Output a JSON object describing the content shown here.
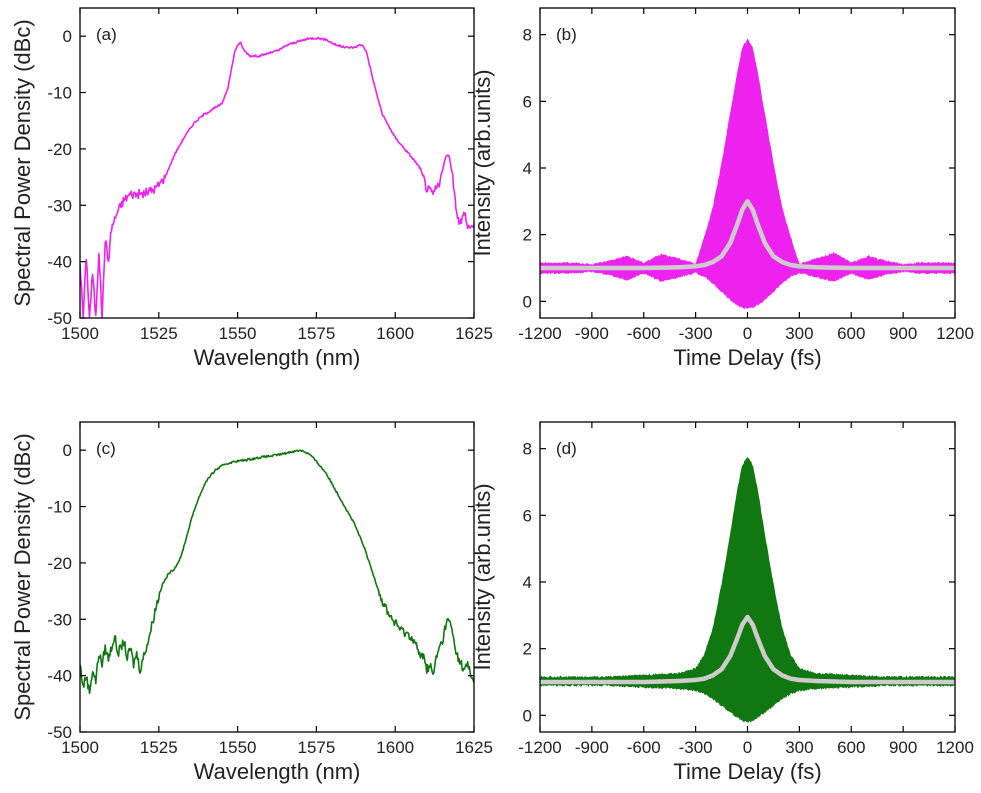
{
  "chart_data": [
    {
      "panel": "(a)",
      "type": "line",
      "xlabel": "Wavelength (nm)",
      "ylabel": "Spectral Power Density (dBc)",
      "xlim": [
        1500,
        1625
      ],
      "ylim": [
        -50,
        5
      ],
      "xticks": [
        1500,
        1525,
        1550,
        1575,
        1600,
        1625
      ],
      "yticks": [
        -50,
        -40,
        -30,
        -20,
        -10,
        0
      ],
      "grid": false,
      "color": "#ee22ee",
      "series": [
        {
          "x": [
            1500,
            1501,
            1502,
            1503,
            1504,
            1505,
            1506,
            1507,
            1508,
            1509,
            1510,
            1512,
            1514,
            1516,
            1520,
            1524,
            1527,
            1530,
            1533,
            1536,
            1539,
            1542,
            1545,
            1547,
            1548,
            1549,
            1550,
            1551,
            1552,
            1554,
            1557,
            1560,
            1563,
            1566,
            1569,
            1572,
            1575,
            1578,
            1581,
            1584,
            1587,
            1589,
            1590,
            1591,
            1592,
            1594,
            1596,
            1598,
            1600,
            1603,
            1606,
            1608,
            1610,
            1612,
            1614,
            1616,
            1617,
            1618,
            1619,
            1620,
            1621,
            1622,
            1623,
            1624,
            1625
          ],
          "y": [
            -40,
            -50,
            -39,
            -50,
            -42,
            -50,
            -38,
            -50,
            -36,
            -40,
            -34,
            -31,
            -29,
            -28,
            -28,
            -27,
            -25,
            -21,
            -18,
            -15.5,
            -14,
            -13,
            -12,
            -9,
            -6,
            -3,
            -1.5,
            -1.2,
            -2.5,
            -3.5,
            -3.5,
            -3,
            -2.5,
            -1.5,
            -1,
            -0.5,
            -0.3,
            -0.6,
            -1.5,
            -2,
            -2,
            -1.5,
            -1.8,
            -3,
            -5.5,
            -10,
            -14,
            -16,
            -18,
            -20,
            -22,
            -23.5,
            -27,
            -28,
            -26,
            -21.5,
            -21,
            -24,
            -29,
            -32.5,
            -33,
            -31,
            -34,
            -33.5,
            -34
          ]
        }
      ]
    },
    {
      "panel": "(b)",
      "type": "line",
      "xlabel": "Time Delay (fs)",
      "ylabel": "Intensity (arb.units)",
      "xlim": [
        -1200,
        1200
      ],
      "ylim": [
        -0.5,
        8.8
      ],
      "xticks": [
        -1200,
        -900,
        -600,
        -300,
        0,
        300,
        600,
        900,
        1200
      ],
      "yticks": [
        0,
        2,
        4,
        6,
        8
      ],
      "grid": false,
      "color": "#ee22ee",
      "envelope_color": "#ee22ee",
      "fit_color": "#cccccc",
      "series": [
        {
          "x": [
            -1200,
            -1000,
            -900,
            -800,
            -700,
            -600,
            -500,
            -420,
            -350,
            -300,
            -250,
            -200,
            -150,
            -100,
            -60,
            -30,
            0,
            30,
            60,
            100,
            150,
            200,
            250,
            300,
            350,
            420,
            500,
            600,
            700,
            800,
            900,
            1000,
            1200
          ],
          "upper": [
            1.15,
            1.15,
            1.1,
            1.2,
            1.35,
            1.15,
            1.4,
            1.3,
            1.2,
            1.1,
            1.9,
            2.8,
            4.1,
            5.6,
            6.8,
            7.6,
            7.85,
            7.6,
            6.8,
            5.6,
            4.1,
            2.8,
            1.9,
            1.1,
            1.2,
            1.3,
            1.45,
            1.15,
            1.35,
            1.2,
            1.1,
            1.15,
            1.15
          ],
          "lower": [
            0.85,
            0.85,
            0.9,
            0.8,
            0.65,
            0.85,
            0.6,
            0.7,
            0.8,
            0.85,
            0.75,
            0.55,
            0.3,
            0.05,
            -0.1,
            -0.18,
            -0.2,
            -0.18,
            -0.1,
            0.05,
            0.3,
            0.55,
            0.75,
            0.85,
            0.8,
            0.7,
            0.6,
            0.85,
            0.65,
            0.8,
            0.9,
            0.85,
            0.85
          ]
        },
        {
          "x": [
            -1200,
            -600,
            -400,
            -300,
            -250,
            -200,
            -150,
            -100,
            -60,
            -30,
            0,
            30,
            60,
            100,
            150,
            200,
            250,
            300,
            400,
            600,
            1200
          ],
          "y": [
            1.0,
            1.0,
            1.02,
            1.05,
            1.09,
            1.18,
            1.35,
            1.75,
            2.3,
            2.75,
            3.0,
            2.75,
            2.3,
            1.75,
            1.35,
            1.18,
            1.09,
            1.05,
            1.02,
            1.0,
            1.0
          ]
        }
      ]
    },
    {
      "panel": "(c)",
      "type": "line",
      "xlabel": "Wavelength (nm)",
      "ylabel": "Spectral Power Density (dBc)",
      "xlim": [
        1500,
        1625
      ],
      "ylim": [
        -50,
        5
      ],
      "xticks": [
        1500,
        1525,
        1550,
        1575,
        1600,
        1625
      ],
      "yticks": [
        -50,
        -40,
        -30,
        -20,
        -10,
        0
      ],
      "grid": false,
      "color": "#117711",
      "series": [
        {
          "x": [
            1500,
            1501,
            1502,
            1503,
            1504,
            1505,
            1506,
            1507,
            1508,
            1509,
            1510,
            1511,
            1512,
            1513,
            1514,
            1515,
            1516,
            1517,
            1518,
            1519,
            1520,
            1522,
            1524,
            1526,
            1528,
            1530,
            1532,
            1534,
            1536,
            1538,
            1540,
            1543,
            1546,
            1549,
            1552,
            1555,
            1558,
            1561,
            1564,
            1567,
            1569,
            1570,
            1571,
            1573,
            1575,
            1578,
            1581,
            1584,
            1587,
            1590,
            1593,
            1596,
            1599,
            1602,
            1605,
            1607,
            1608,
            1609,
            1610,
            1611,
            1612,
            1613,
            1614,
            1615,
            1616,
            1617,
            1618,
            1619,
            1620,
            1621,
            1622,
            1623,
            1624,
            1625
          ],
          "y": [
            -38,
            -42,
            -40,
            -43,
            -39,
            -41,
            -36,
            -38,
            -35,
            -37,
            -35,
            -33,
            -36,
            -35,
            -34,
            -37,
            -35,
            -38,
            -36,
            -39,
            -37,
            -33,
            -28,
            -24,
            -22,
            -21,
            -19,
            -15,
            -11,
            -8,
            -5.5,
            -3.5,
            -2.5,
            -2,
            -1.8,
            -1.5,
            -1.2,
            -1,
            -0.7,
            -0.3,
            -0.1,
            0,
            -0.2,
            -0.8,
            -2,
            -4,
            -7,
            -10,
            -13,
            -17,
            -22,
            -27,
            -30,
            -32,
            -33,
            -35,
            -37,
            -36,
            -39,
            -38,
            -40,
            -37,
            -35,
            -34,
            -31,
            -30,
            -32,
            -35,
            -37,
            -38,
            -39,
            -38,
            -40,
            -41
          ]
        }
      ]
    },
    {
      "panel": "(d)",
      "type": "line",
      "xlabel": "Time Delay (fs)",
      "ylabel": "Intensity (arb.units)",
      "xlim": [
        -1200,
        1200
      ],
      "ylim": [
        -0.5,
        8.8
      ],
      "xticks": [
        -1200,
        -900,
        -600,
        -300,
        0,
        300,
        600,
        900,
        1200
      ],
      "yticks": [
        0,
        2,
        4,
        6,
        8
      ],
      "grid": false,
      "color": "#117711",
      "envelope_color": "#117711",
      "fit_color": "#cccccc",
      "series": [
        {
          "x": [
            -1200,
            -800,
            -600,
            -400,
            -300,
            -250,
            -200,
            -150,
            -100,
            -60,
            -30,
            0,
            30,
            60,
            100,
            150,
            200,
            250,
            300,
            400,
            600,
            800,
            1200
          ],
          "upper": [
            1.15,
            1.15,
            1.2,
            1.25,
            1.4,
            1.8,
            2.6,
            3.9,
            5.4,
            6.7,
            7.5,
            7.75,
            7.5,
            6.7,
            5.4,
            3.9,
            2.6,
            1.8,
            1.4,
            1.25,
            1.2,
            1.15,
            1.15
          ],
          "lower": [
            0.9,
            0.9,
            0.85,
            0.8,
            0.75,
            0.65,
            0.5,
            0.3,
            0.1,
            -0.05,
            -0.15,
            -0.2,
            -0.15,
            -0.05,
            0.1,
            0.3,
            0.5,
            0.65,
            0.75,
            0.8,
            0.85,
            0.9,
            0.9
          ]
        },
        {
          "x": [
            -1200,
            -600,
            -400,
            -300,
            -250,
            -200,
            -150,
            -100,
            -60,
            -30,
            0,
            30,
            60,
            100,
            150,
            200,
            250,
            300,
            400,
            600,
            1200
          ],
          "y": [
            1.0,
            1.0,
            1.03,
            1.06,
            1.1,
            1.2,
            1.38,
            1.78,
            2.3,
            2.72,
            2.95,
            2.72,
            2.3,
            1.78,
            1.38,
            1.2,
            1.1,
            1.06,
            1.03,
            1.0,
            1.0
          ]
        }
      ]
    }
  ]
}
